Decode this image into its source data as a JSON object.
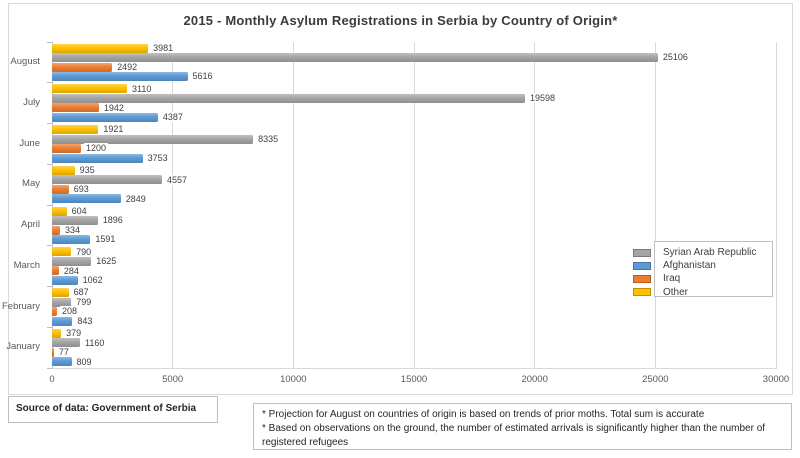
{
  "chart_data": {
    "type": "bar",
    "orientation": "horizontal",
    "title": "2015 - Monthly Asylum Registrations in Serbia by Country of Origin*",
    "categories": [
      "August",
      "July",
      "June",
      "May",
      "April",
      "March",
      "February",
      "January"
    ],
    "series": [
      {
        "name": "Other",
        "color": "#FFC000",
        "values": [
          3981,
          3110,
          1921,
          935,
          604,
          790,
          687,
          379
        ]
      },
      {
        "name": "Syrian Arab Republic",
        "color": "#A5A5A5",
        "values": [
          25106,
          19598,
          8335,
          4557,
          1896,
          1625,
          799,
          1160
        ]
      },
      {
        "name": "Iraq",
        "color": "#ED7D31",
        "values": [
          2492,
          1942,
          1200,
          693,
          334,
          284,
          208,
          77
        ]
      },
      {
        "name": "Afghanistan",
        "color": "#5B9BD5",
        "values": [
          5616,
          4387,
          3753,
          2849,
          1591,
          1062,
          843,
          809
        ]
      }
    ],
    "legend": {
      "position": "right",
      "entries": [
        {
          "label": "Syrian Arab Republic",
          "color": "#A5A5A5"
        },
        {
          "label": "Afghanistan",
          "color": "#5B9BD5"
        },
        {
          "label": "Iraq",
          "color": "#ED7D31"
        },
        {
          "label": "Other",
          "color": "#FFC000"
        }
      ]
    },
    "x_axis": {
      "min": 0,
      "max": 30000,
      "ticks": [
        0,
        5000,
        10000,
        15000,
        20000,
        25000,
        30000
      ]
    },
    "grid": true,
    "data_labels": true
  },
  "source_box": {
    "text": "Source of data: Government of Serbia"
  },
  "footnotes": {
    "lines": [
      "* Projection for August on countries of origin is based on trends of prior moths. Total sum is accurate",
      "* Based on observations on the ground, the number of estimated arrivals is significantly higher than the number of registered refugees"
    ]
  },
  "colors": {
    "grid": "#D9D9D9",
    "axis": "#BFBFBF",
    "bar_label_text": "#404040",
    "tick_text": "#595959",
    "frame_border": "#D9D9D9"
  }
}
